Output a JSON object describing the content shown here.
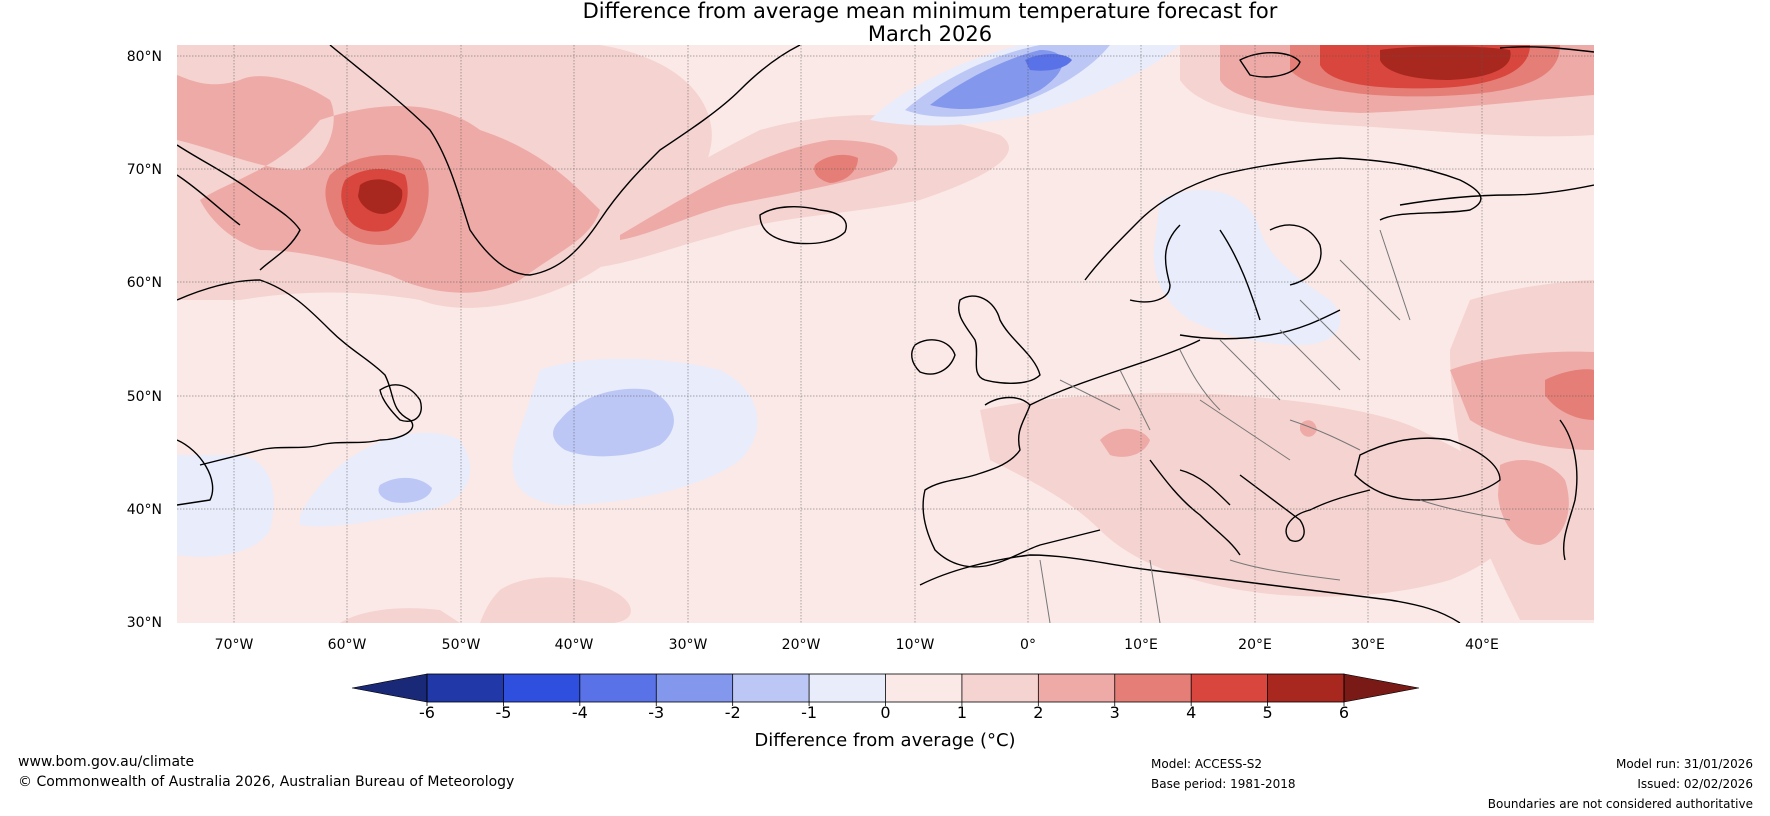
{
  "title": {
    "line1": "Difference from average mean minimum temperature forecast for",
    "line2": "March 2026"
  },
  "map": {
    "lat_labels": [
      "80°N",
      "70°N",
      "60°N",
      "50°N",
      "40°N",
      "30°N"
    ],
    "lon_labels": [
      "70°W",
      "60°W",
      "50°W",
      "40°W",
      "30°W",
      "20°W",
      "10°W",
      "0°",
      "10°E",
      "20°E",
      "30°E",
      "40°E"
    ]
  },
  "colorbar": {
    "ticks": [
      "-6",
      "-5",
      "-4",
      "-3",
      "-2",
      "-1",
      "0",
      "1",
      "2",
      "3",
      "4",
      "5",
      "6"
    ],
    "colors": [
      "#2139a8",
      "#2f4fde",
      "#5a72e8",
      "#8397ec",
      "#bcc7f5",
      "#e8ecfb",
      "#fbe9e7",
      "#f5d3d0",
      "#eeaaa6",
      "#e57e77",
      "#d9463d",
      "#a82820"
    ],
    "under_color": "#192978",
    "over_color": "#7a1a16",
    "label": "Difference from average (°C)"
  },
  "footer": {
    "website": "www.bom.gov.au/climate",
    "copyright": "© Commonwealth of Australia 2026, Australian Bureau of Meteorology",
    "model": "Model: ACCESS-S2",
    "base_period": "Base period: 1981-2018",
    "model_run": "Model run: 31/01/2026",
    "issued": "Issued: 02/02/2026",
    "disclaimer": "Boundaries are not considered authoritative"
  }
}
